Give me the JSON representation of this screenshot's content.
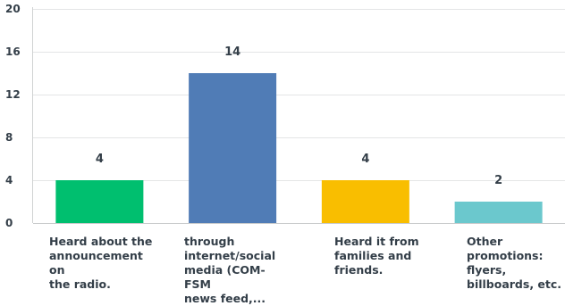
{
  "chart_data": {
    "type": "bar",
    "categories": [
      "Heard about the\nannouncement on\nthe radio.",
      "through\ninternet/social\nmedia (COM-FSM\nnews feed,...",
      "Heard it from\nfamilies and\nfriends.",
      "Other\npromotions:\nflyers,\nbillboards, etc."
    ],
    "values": [
      4,
      14,
      4,
      2
    ],
    "data_labels": [
      "4",
      "14",
      "4",
      "2"
    ],
    "colors": [
      "#00bf6f",
      "#507cb6",
      "#f9be00",
      "#6bc8cd"
    ],
    "ylim": [
      0,
      20
    ],
    "yticks": [
      0,
      4,
      8,
      12,
      16,
      20
    ],
    "ytick_labels": [
      "0",
      "4",
      "8",
      "12",
      "16",
      "20"
    ],
    "grid": true,
    "title": "",
    "xlabel": "",
    "ylabel": ""
  }
}
